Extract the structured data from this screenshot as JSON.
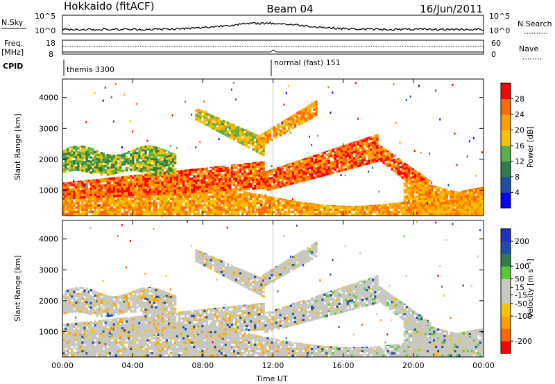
{
  "header": {
    "station": "Hokkaido (fitACF)",
    "beam": "Beam 04",
    "date": "16/Jun/2011"
  },
  "top_strip": {
    "left_label": "N.Sky",
    "left_ticks": [
      "10^5",
      "10^0"
    ],
    "right_ticks": [
      "10^5",
      "10^0"
    ],
    "right_label": "N.Search"
  },
  "freq_strip": {
    "left_label_1": "Freq.",
    "left_label_2": "[MHz]",
    "left_ticks": [
      "18",
      "8"
    ],
    "right_ticks": [
      "60",
      "0"
    ],
    "right_label": "Nave"
  },
  "cpid_strip": {
    "label": "CPID",
    "program_1": "themis 3300",
    "program_2": "normal (fast) 151"
  },
  "colors": {
    "power_scale": [
      "#0000ff",
      "#1f4ea8",
      "#2e7d4b",
      "#57b04a",
      "#f5c400",
      "#ffa000",
      "#ff6a00",
      "#ff0000"
    ],
    "velocity_scale": [
      "#ff0000",
      "#ff6a00",
      "#ffa000",
      "#f5c400",
      "#c8c8c0",
      "#c8c8c0",
      "#57c83a",
      "#2e7d4b",
      "#1f4ea8",
      "#2030c0"
    ],
    "ground_scatter": "#c8c8c0"
  },
  "chart_data": [
    {
      "type": "heatmap",
      "name": "power",
      "xlabel": "",
      "ylabel": "Slant Range [km]",
      "x_ticks": [
        "00:00",
        "04:00",
        "08:00",
        "12:00",
        "16:00",
        "20:00",
        "00:00"
      ],
      "xlim": [
        0,
        24
      ],
      "y_ticks": [
        1000,
        2000,
        3000,
        4000
      ],
      "ylim": [
        180,
        4600
      ],
      "colorbar_label": "Power [dB]",
      "colorbar_ticks": [
        4,
        8,
        12,
        16,
        20,
        24,
        28
      ],
      "colorbar_range": [
        0,
        32
      ],
      "features": [
        {
          "t": [
            0,
            24
          ],
          "range": [
            200,
            1300
          ],
          "level": "strong"
        },
        {
          "t": [
            5,
            12
          ],
          "range": [
            800,
            1600
          ],
          "level": "strong"
        },
        {
          "t": [
            8,
            11
          ],
          "range": [
            2200,
            3600
          ],
          "level": "moderate"
        },
        {
          "t": [
            13,
            18
          ],
          "range": [
            1400,
            3000
          ],
          "level": "strong"
        },
        {
          "t": [
            15,
            20
          ],
          "range": [
            1800,
            2600
          ],
          "level": "strong"
        },
        {
          "t": [
            19.5,
            24
          ],
          "range": [
            200,
            1500
          ],
          "level": "strong"
        },
        {
          "t": [
            0,
            6
          ],
          "range": [
            1600,
            2400
          ],
          "level": "weak"
        }
      ]
    },
    {
      "type": "heatmap",
      "name": "velocity",
      "xlabel": "Time UT",
      "ylabel": "Slant Range [km]",
      "x_ticks": [
        "00:00",
        "04:00",
        "08:00",
        "12:00",
        "16:00",
        "20:00",
        "00:00"
      ],
      "xlim": [
        0,
        24
      ],
      "y_ticks": [
        1000,
        2000,
        3000,
        4000
      ],
      "ylim": [
        180,
        4600
      ],
      "colorbar_label": "Velocity [m s⁻¹]",
      "colorbar_ticks": [
        -200,
        -100,
        -50,
        -15,
        15,
        50,
        100,
        200
      ],
      "colorbar_range": [
        -250,
        250
      ]
    }
  ]
}
